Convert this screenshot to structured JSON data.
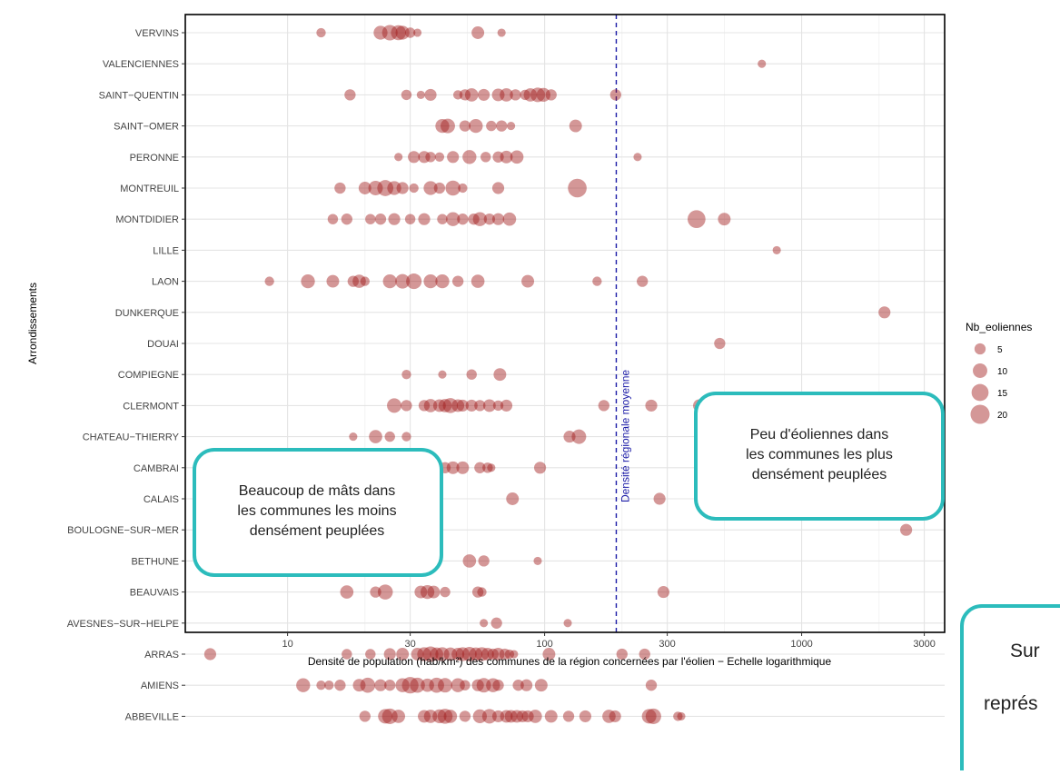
{
  "chart_data": {
    "type": "scatter",
    "title": "",
    "xlabel": "Densité de population (hab/km²) des communes de la région concernées par l'éolien − Echelle logarithmique",
    "ylabel": "Arrondissements",
    "x_scale": "log",
    "xlim": [
      4,
      3600
    ],
    "x_ticks": [
      10,
      30,
      100,
      300,
      1000,
      3000
    ],
    "x_tick_labels": [
      "10",
      "30",
      "100",
      "300",
      "1000",
      "3000"
    ],
    "grid": true,
    "categories": [
      "VERVINS",
      "VALENCIENNES",
      "SAINT−QUENTIN",
      "SAINT−OMER",
      "PERONNE",
      "MONTREUIL",
      "MONTDIDIER",
      "LILLE",
      "LAON",
      "DUNKERQUE",
      "DOUAI",
      "COMPIEGNE",
      "CLERMONT",
      "CHATEAU−THIERRY",
      "CAMBRAI",
      "CALAIS",
      "BOULOGNE−SUR−MER",
      "BETHUNE",
      "BEAUVAIS",
      "AVESNES−SUR−HELPE",
      "ARRAS",
      "AMIENS",
      "ABBEVILLE"
    ],
    "reference_line": {
      "x": 190,
      "label": "Densité régionale moyenne",
      "color": "#1a1aa6"
    },
    "point_color": "#a01818",
    "size_legend": {
      "title": "Nb_eoliennes",
      "values": [
        5,
        10,
        15,
        20
      ]
    },
    "points": [
      {
        "cat": "VERVINS",
        "pts": [
          [
            13.5,
            3
          ],
          [
            23,
            9
          ],
          [
            25,
            12
          ],
          [
            27,
            11
          ],
          [
            28,
            9
          ],
          [
            30,
            4
          ],
          [
            32,
            2
          ],
          [
            55,
            7
          ],
          [
            68,
            2
          ]
        ]
      },
      {
        "cat": "VALENCIENNES",
        "pts": [
          [
            700,
            2
          ]
        ]
      },
      {
        "cat": "SAINT−QUENTIN",
        "pts": [
          [
            17.5,
            5
          ],
          [
            29,
            4
          ],
          [
            33,
            2
          ],
          [
            36,
            6
          ],
          [
            46,
            3
          ],
          [
            49,
            5
          ],
          [
            52,
            8
          ],
          [
            58,
            6
          ],
          [
            66,
            7
          ],
          [
            71,
            8
          ],
          [
            77,
            5
          ],
          [
            84,
            4
          ],
          [
            88,
            8
          ],
          [
            94,
            10
          ],
          [
            99,
            9
          ],
          [
            106,
            5
          ],
          [
            189,
            5
          ]
        ]
      },
      {
        "cat": "SAINT−OMER",
        "pts": [
          [
            40,
            9
          ],
          [
            42,
            10
          ],
          [
            49,
            5
          ],
          [
            54,
            9
          ],
          [
            62,
            4
          ],
          [
            68,
            5
          ],
          [
            74,
            2
          ],
          [
            132,
            7
          ]
        ]
      },
      {
        "cat": "PERONNE",
        "pts": [
          [
            27,
            2
          ],
          [
            31,
            6
          ],
          [
            34,
            6
          ],
          [
            36,
            4
          ],
          [
            39,
            3
          ],
          [
            44,
            6
          ],
          [
            51,
            9
          ],
          [
            59,
            4
          ],
          [
            66,
            5
          ],
          [
            71,
            7
          ],
          [
            78,
            8
          ],
          [
            230,
            2
          ]
        ]
      },
      {
        "cat": "MONTREUIL",
        "pts": [
          [
            16,
            5
          ],
          [
            20,
            7
          ],
          [
            22,
            10
          ],
          [
            24,
            13
          ],
          [
            26,
            9
          ],
          [
            28,
            6
          ],
          [
            31,
            3
          ],
          [
            36,
            9
          ],
          [
            39,
            5
          ],
          [
            44,
            11
          ],
          [
            48,
            3
          ],
          [
            66,
            6
          ],
          [
            134,
            19
          ]
        ]
      },
      {
        "cat": "MONTDIDIER",
        "pts": [
          [
            15,
            4
          ],
          [
            17,
            5
          ],
          [
            21,
            4
          ],
          [
            23,
            5
          ],
          [
            26,
            6
          ],
          [
            30,
            4
          ],
          [
            34,
            6
          ],
          [
            40,
            4
          ],
          [
            44,
            9
          ],
          [
            48,
            5
          ],
          [
            53,
            5
          ],
          [
            56,
            9
          ],
          [
            61,
            5
          ],
          [
            66,
            6
          ],
          [
            73,
            8
          ],
          [
            390,
            17
          ],
          [
            500,
            7
          ]
        ]
      },
      {
        "cat": "LILLE",
        "pts": [
          [
            800,
            2
          ]
        ]
      },
      {
        "cat": "LAON",
        "pts": [
          [
            8.5,
            3
          ],
          [
            12,
            9
          ],
          [
            15,
            7
          ],
          [
            18,
            5
          ],
          [
            19,
            8
          ],
          [
            20,
            3
          ],
          [
            25,
            9
          ],
          [
            28,
            10
          ],
          [
            31,
            12
          ],
          [
            36,
            9
          ],
          [
            40,
            9
          ],
          [
            46,
            5
          ],
          [
            55,
            8
          ],
          [
            86,
            7
          ],
          [
            160,
            3
          ],
          [
            240,
            5
          ]
        ]
      },
      {
        "cat": "DUNKERQUE",
        "pts": [
          [
            2100,
            6
          ]
        ]
      },
      {
        "cat": "DOUAI",
        "pts": [
          [
            480,
            5
          ]
        ]
      },
      {
        "cat": "COMPIEGNE",
        "pts": [
          [
            29,
            3
          ],
          [
            40,
            2
          ],
          [
            52,
            4
          ],
          [
            67,
            7
          ]
        ]
      },
      {
        "cat": "CLERMONT",
        "pts": [
          [
            26,
            10
          ],
          [
            29,
            5
          ],
          [
            34,
            5
          ],
          [
            36,
            8
          ],
          [
            39,
            7
          ],
          [
            41,
            8
          ],
          [
            43,
            11
          ],
          [
            46,
            7
          ],
          [
            48,
            6
          ],
          [
            52,
            6
          ],
          [
            56,
            5
          ],
          [
            61,
            7
          ],
          [
            66,
            4
          ],
          [
            71,
            6
          ],
          [
            170,
            5
          ],
          [
            260,
            6
          ],
          [
            400,
            7
          ]
        ]
      },
      {
        "cat": "CHATEAU−THIERRY",
        "pts": [
          [
            18,
            2
          ],
          [
            22,
            8
          ],
          [
            25,
            4
          ],
          [
            29,
            3
          ],
          [
            125,
            6
          ],
          [
            136,
            10
          ]
        ]
      },
      {
        "cat": "CAMBRAI",
        "pts": [
          [
            41,
            5
          ],
          [
            44,
            7
          ],
          [
            48,
            7
          ],
          [
            56,
            5
          ],
          [
            60,
            4
          ],
          [
            62,
            2
          ],
          [
            96,
            6
          ]
        ]
      },
      {
        "cat": "CALAIS",
        "pts": [
          [
            75,
            7
          ],
          [
            280,
            6
          ]
        ]
      },
      {
        "cat": "BOULOGNE−SUR−MER",
        "pts": [
          [
            2550,
            6
          ]
        ]
      },
      {
        "cat": "BETHUNE",
        "pts": [
          [
            51,
            8
          ],
          [
            58,
            5
          ],
          [
            94,
            2
          ]
        ]
      },
      {
        "cat": "BEAUVAIS",
        "pts": [
          [
            17,
            8
          ],
          [
            22,
            5
          ],
          [
            24,
            11
          ],
          [
            33,
            7
          ],
          [
            35,
            9
          ],
          [
            37,
            7
          ],
          [
            41,
            4
          ],
          [
            55,
            5
          ],
          [
            57,
            3
          ],
          [
            290,
            6
          ]
        ]
      },
      {
        "cat": "AVESNES−SUR−HELPE",
        "pts": [
          [
            58,
            2
          ],
          [
            65,
            5
          ],
          [
            123,
            2
          ]
        ]
      },
      {
        "cat": "ARRAS",
        "pts": [
          [
            5,
            6
          ],
          [
            17,
            4
          ],
          [
            21,
            4
          ],
          [
            25,
            6
          ],
          [
            28,
            7
          ],
          [
            32,
            7
          ],
          [
            34,
            9
          ],
          [
            36,
            12
          ],
          [
            38,
            8
          ],
          [
            40,
            9
          ],
          [
            43,
            8
          ],
          [
            46,
            7
          ],
          [
            48,
            9
          ],
          [
            51,
            10
          ],
          [
            54,
            8
          ],
          [
            57,
            9
          ],
          [
            60,
            7
          ],
          [
            63,
            5
          ],
          [
            66,
            7
          ],
          [
            70,
            5
          ],
          [
            73,
            3
          ],
          [
            76,
            2
          ],
          [
            104,
            7
          ],
          [
            200,
            5
          ],
          [
            245,
            5
          ]
        ]
      },
      {
        "cat": "AMIENS",
        "pts": [
          [
            11.5,
            9
          ],
          [
            13.5,
            3
          ],
          [
            14.5,
            3
          ],
          [
            16,
            5
          ],
          [
            19,
            7
          ],
          [
            20.5,
            11
          ],
          [
            23,
            6
          ],
          [
            25,
            5
          ],
          [
            28,
            9
          ],
          [
            30,
            14
          ],
          [
            32,
            11
          ],
          [
            35,
            8
          ],
          [
            38,
            11
          ],
          [
            41,
            10
          ],
          [
            46,
            9
          ],
          [
            49,
            4
          ],
          [
            55,
            6
          ],
          [
            58,
            10
          ],
          [
            63,
            9
          ],
          [
            66,
            5
          ],
          [
            79,
            5
          ],
          [
            85,
            6
          ],
          [
            97,
            7
          ],
          [
            260,
            5
          ]
        ]
      },
      {
        "cat": "ABBEVILLE",
        "pts": [
          [
            20,
            5
          ],
          [
            24,
            10
          ],
          [
            25,
            12
          ],
          [
            27,
            8
          ],
          [
            34,
            7
          ],
          [
            36,
            8
          ],
          [
            39,
            9
          ],
          [
            41,
            11
          ],
          [
            43,
            8
          ],
          [
            49,
            5
          ],
          [
            56,
            9
          ],
          [
            61,
            10
          ],
          [
            66,
            6
          ],
          [
            71,
            7
          ],
          [
            74,
            7
          ],
          [
            78,
            7
          ],
          [
            82,
            6
          ],
          [
            86,
            6
          ],
          [
            92,
            8
          ],
          [
            106,
            7
          ],
          [
            124,
            5
          ],
          [
            144,
            6
          ],
          [
            178,
            8
          ],
          [
            188,
            6
          ],
          [
            255,
            10
          ],
          [
            265,
            12
          ],
          [
            330,
            3
          ],
          [
            340,
            2
          ]
        ]
      }
    ],
    "annotations": [
      {
        "text": [
          "Beaucoup de mâts dans",
          "les communes les moins",
          "densément peuplées"
        ],
        "border_color": "#2cbcbc"
      },
      {
        "text": [
          "Peu d'éoliennes dans",
          "les communes les plus",
          "densément peuplées"
        ],
        "border_color": "#2cbcbc"
      },
      {
        "text": [
          "Sur",
          "représ"
        ],
        "border_color": "#2cbcbc"
      }
    ]
  }
}
